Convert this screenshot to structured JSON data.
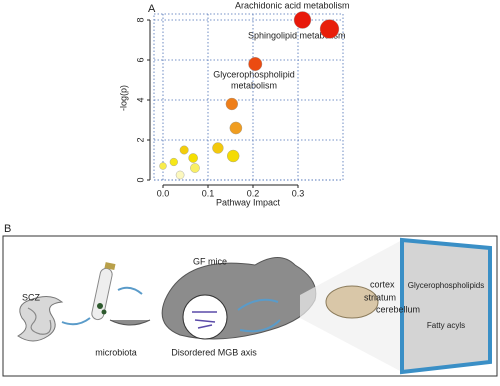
{
  "chart_data": {
    "type": "scatter",
    "panel_label": "A",
    "x_label": "Pathway Impact",
    "y_label": "-log(p)",
    "x": [
      0.31,
      0.37,
      0.205,
      0.153,
      0.162,
      0.122,
      0.156,
      0.047,
      0.067,
      0.024,
      0.071,
      0.0,
      0.038
    ],
    "y": [
      8.0,
      7.55,
      5.8,
      3.8,
      2.6,
      1.6,
      1.2,
      1.5,
      1.1,
      0.9,
      0.6,
      0.7,
      0.25
    ],
    "xlim": [
      -0.02,
      0.4
    ],
    "xticks": [
      {
        "value": 0,
        "label": "0.0"
      },
      0.1,
      0.2,
      0.3
    ],
    "ylim": [
      0,
      8.3
    ],
    "yticks": [
      0,
      2,
      4,
      6,
      8
    ],
    "grid": true,
    "annotations": {
      "arachidonic": "Arachidonic acid  metabolism",
      "sphingolipid": "Sphingolipid metabolism",
      "glycerophospholipid": [
        "Glycerophospholipid",
        "metabolism"
      ]
    }
  },
  "diagram": {
    "panel_label": "B",
    "source": "SCZ",
    "transfer": "microbiota",
    "host": "GF mice",
    "axis": "Disordered MGB axis",
    "regions": [
      "cortex",
      "striatum",
      "cerebellum"
    ],
    "lipids": [
      "Glycerophospholipids",
      "Fatty acyls"
    ]
  }
}
